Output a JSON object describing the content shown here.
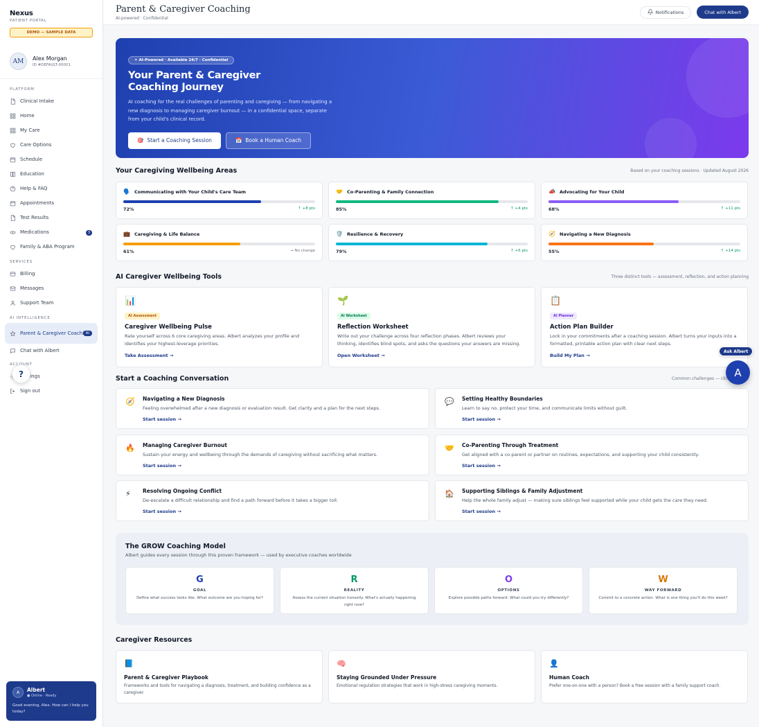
{
  "brand": {
    "name": "Nexus",
    "sub": "PATIENT PORTAL",
    "demo": "DEMO — SAMPLE DATA"
  },
  "profile": {
    "initials": "AM",
    "name": "Alex Morgan",
    "id": "ID #DEFAULT-00001"
  },
  "sidebar": {
    "platform_label": "PLATFORM",
    "platform": [
      {
        "label": "Clinical Intake",
        "icon": "document-icon"
      },
      {
        "label": "Home",
        "icon": "grid-icon"
      },
      {
        "label": "My Care",
        "icon": "grid-icon"
      },
      {
        "label": "Care Options",
        "icon": "heart-icon"
      },
      {
        "label": "Schedule",
        "icon": "calendar-icon"
      },
      {
        "label": "Education",
        "icon": "book-icon"
      },
      {
        "label": "Help & FAQ",
        "icon": "help-circle-icon"
      },
      {
        "label": "Appointments",
        "icon": "calendar-icon"
      },
      {
        "label": "Test Results",
        "icon": "document-icon"
      },
      {
        "label": "Medications",
        "icon": "pill-icon",
        "badge": "3"
      },
      {
        "label": "Family & ABA Program",
        "icon": "heart-icon"
      }
    ],
    "services_label": "SERVICES",
    "services": [
      {
        "label": "Billing",
        "icon": "card-icon"
      },
      {
        "label": "Messages",
        "icon": "mail-icon"
      },
      {
        "label": "Support Team",
        "icon": "user-icon"
      }
    ],
    "ai_label": "AI INTELLIGENCE",
    "ai": [
      {
        "label": "Parent & Caregiver Coaching",
        "icon": "star-icon",
        "badge": "AI"
      },
      {
        "label": "Chat with Albert",
        "icon": "chat-icon"
      }
    ],
    "account_label": "ACCOUNT",
    "account": [
      {
        "label": "Settings",
        "icon": "gear-icon"
      },
      {
        "label": "Sign out",
        "icon": "logout-icon"
      }
    ],
    "help_fab": "?"
  },
  "albert": {
    "initials": "A",
    "name": "Albert",
    "status": "● Online · Ready",
    "message": "Good evening, Alex. How can I help you today?"
  },
  "header": {
    "title": "Parent & Caregiver Coaching",
    "subtitle": "AI-powered · Confidential",
    "notifications": "Notifications",
    "chat": "Chat with Albert"
  },
  "hero": {
    "pill": "✦ AI-Powered · Available 24/7 · Confidential",
    "title": "Your Parent & Caregiver Coaching Journey",
    "desc": "AI coaching for the real challenges of parenting and caregiving — from navigating a new diagnosis to managing caregiver burnout — in a confidential space, separate from your child's clinical record.",
    "btn_primary": "Start a Coaching Session",
    "btn_secondary": "Book a Human Coach"
  },
  "wellbeing": {
    "title": "Your Caregiving Wellbeing Areas",
    "note": "Based on your coaching sessions · Updated August 2026",
    "areas": [
      {
        "icon": "🗣️",
        "label": "Communicating with Your Child's Care Team",
        "value": 72,
        "pct": "72%",
        "delta": "↑ +8 pts",
        "color": "#1e40af"
      },
      {
        "icon": "🤝",
        "label": "Co-Parenting & Family Connection",
        "value": 85,
        "pct": "85%",
        "delta": "↑ +4 pts",
        "color": "#10b981"
      },
      {
        "icon": "📣",
        "label": "Advocating for Your Child",
        "value": 68,
        "pct": "68%",
        "delta": "↑ +11 pts",
        "color": "#8b5cf6"
      },
      {
        "icon": "💼",
        "label": "Caregiving & Life Balance",
        "value": 61,
        "pct": "61%",
        "delta": "→ No change",
        "color": "#f59e0b"
      },
      {
        "icon": "🛡️",
        "label": "Resilience & Recovery",
        "value": 79,
        "pct": "79%",
        "delta": "↑ +6 pts",
        "color": "#06b6d4"
      },
      {
        "icon": "🧭",
        "label": "Navigating a New Diagnosis",
        "value": 55,
        "pct": "55%",
        "delta": "↑ +14 pts",
        "color": "#f97316"
      }
    ]
  },
  "tools": {
    "title": "AI Caregiver Wellbeing Tools",
    "note": "Three distinct tools — assessment, reflection, and action planning",
    "items": [
      {
        "icon": "📊",
        "badge": "AI Assessment",
        "title": "Caregiver Wellbeing Pulse",
        "desc": "Rate yourself across 6 core caregiving areas. Albert analyzes your profile and identifies your highest-leverage priorities.",
        "link": "Take Assessment →"
      },
      {
        "icon": "🌱",
        "badge": "AI Worksheet",
        "title": "Reflection Worksheet",
        "desc": "Write out your challenge across four reflection phases. Albert reviews your thinking, identifies blind spots, and asks the questions your answers are missing.",
        "link": "Open Worksheet →"
      },
      {
        "icon": "📋",
        "badge": "AI Planner",
        "title": "Action Plan Builder",
        "desc": "Lock in your commitments after a coaching session. Albert turns your inputs into a formatted, printable action plan with clear next steps.",
        "link": "Build My Plan →"
      }
    ]
  },
  "conversation": {
    "title": "Start a Coaching Conversation",
    "note": "Common challenges — click to begin",
    "items": [
      {
        "icon": "🧭",
        "title": "Navigating a New Diagnosis",
        "desc": "Feeling overwhelmed after a new diagnosis or evaluation result. Get clarity and a plan for the next steps.",
        "link": "Start session →"
      },
      {
        "icon": "💬",
        "title": "Setting Healthy Boundaries",
        "desc": "Learn to say no, protect your time, and communicate limits without guilt.",
        "link": "Start session →"
      },
      {
        "icon": "🔥",
        "title": "Managing Caregiver Burnout",
        "desc": "Sustain your energy and wellbeing through the demands of caregiving without sacrificing what matters.",
        "link": "Start session →"
      },
      {
        "icon": "🤝",
        "title": "Co-Parenting Through Treatment",
        "desc": "Get aligned with a co-parent or partner on routines, expectations, and supporting your child consistently.",
        "link": "Start session →"
      },
      {
        "icon": "⚡",
        "title": "Resolving Ongoing Conflict",
        "desc": "De-escalate a difficult relationship and find a path forward before it takes a bigger toll.",
        "link": "Start session →"
      },
      {
        "icon": "🏠",
        "title": "Supporting Siblings & Family Adjustment",
        "desc": "Help the whole family adjust — making sure siblings feel supported while your child gets the care they need.",
        "link": "Start session →"
      }
    ]
  },
  "grow": {
    "title": "The GROW Coaching Model",
    "sub": "Albert guides every session through this proven framework — used by executive coaches worldwide",
    "steps": [
      {
        "letter": "G",
        "name": "GOAL",
        "desc": "Define what success looks like. What outcome are you hoping for?",
        "color": "#1e40af"
      },
      {
        "letter": "R",
        "name": "REALITY",
        "desc": "Assess the current situation honestly. What's actually happening right now?",
        "color": "#059669"
      },
      {
        "letter": "O",
        "name": "OPTIONS",
        "desc": "Explore possible paths forward. What could you try differently?",
        "color": "#7c3aed"
      },
      {
        "letter": "W",
        "name": "WAY FORWARD",
        "desc": "Commit to a concrete action. What is one thing you'll do this week?",
        "color": "#d97706"
      }
    ]
  },
  "resources": {
    "title": "Caregiver Resources",
    "items": [
      {
        "icon": "📘",
        "title": "Parent & Caregiver Playbook",
        "desc": "Frameworks and tools for navigating a diagnosis, treatment, and building confidence as a caregiver."
      },
      {
        "icon": "🧠",
        "title": "Staying Grounded Under Pressure",
        "desc": "Emotional regulation strategies that work in high-stress caregiving moments."
      },
      {
        "icon": "👤",
        "title": "Human Coach",
        "desc": "Prefer one-on-one with a person? Book a free session with a family support coach."
      }
    ]
  },
  "floating": {
    "ask": "Ask Albert",
    "fab": "A"
  }
}
